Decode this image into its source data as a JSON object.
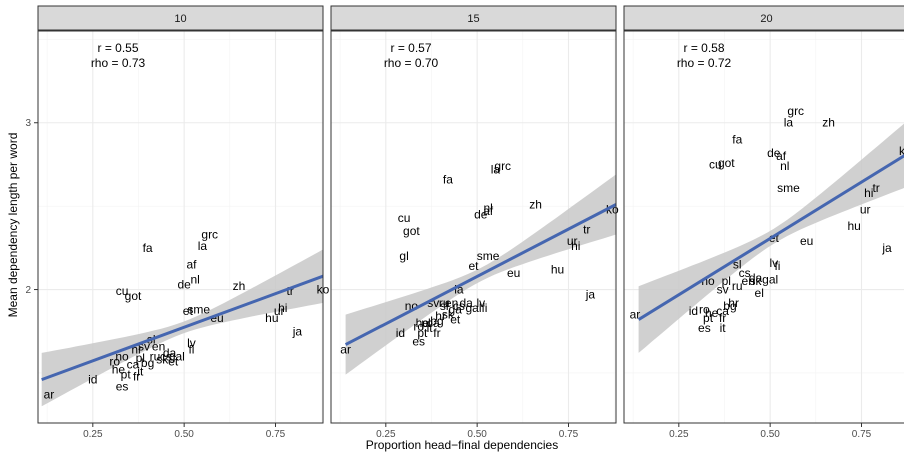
{
  "chart_data": {
    "type": "scatter",
    "xlabel": "Proportion head−final dependencies",
    "ylabel": "Mean dependency length per word",
    "xlim": [
      0.1,
      0.88
    ],
    "ylim": [
      1.2,
      3.55
    ],
    "x_ticks": [
      0.25,
      0.5,
      0.75
    ],
    "x_tick_labels": [
      "0.25",
      "0.50",
      "0.75"
    ],
    "y_ticks": [
      2,
      3
    ],
    "y_tick_labels": [
      "2",
      "3"
    ],
    "grid": true,
    "colors": {
      "fit_line": "#4566b0",
      "confidence_band": "#c8c8c8",
      "strip": "#d9d9d9",
      "panel_border": "#333333",
      "grid": "#ebebeb"
    },
    "panels": [
      {
        "strip": "10",
        "stats": {
          "r": "r =  0.55",
          "rho": "rho =  0.73"
        },
        "fit": {
          "x0": 0.11,
          "y0": 1.46,
          "x1": 0.88,
          "y1": 2.08
        },
        "band_half_width": {
          "at_ends": 0.16,
          "at_center": 0.035
        },
        "points": [
          {
            "label": "ar",
            "x": 0.13,
            "y": 1.37
          },
          {
            "label": "id",
            "x": 0.25,
            "y": 1.46
          },
          {
            "label": "es",
            "x": 0.33,
            "y": 1.42
          },
          {
            "label": "pt",
            "x": 0.34,
            "y": 1.49
          },
          {
            "label": "fr",
            "x": 0.37,
            "y": 1.48
          },
          {
            "label": "it",
            "x": 0.38,
            "y": 1.51
          },
          {
            "label": "he",
            "x": 0.32,
            "y": 1.52
          },
          {
            "label": "ro",
            "x": 0.31,
            "y": 1.57
          },
          {
            "label": "no",
            "x": 0.33,
            "y": 1.6
          },
          {
            "label": "ca",
            "x": 0.36,
            "y": 1.55
          },
          {
            "label": "pl",
            "x": 0.38,
            "y": 1.59
          },
          {
            "label": "bg",
            "x": 0.4,
            "y": 1.56
          },
          {
            "label": "ru",
            "x": 0.42,
            "y": 1.6
          },
          {
            "label": "hr",
            "x": 0.37,
            "y": 1.64
          },
          {
            "label": "cs",
            "x": 0.45,
            "y": 1.6
          },
          {
            "label": "sk",
            "x": 0.44,
            "y": 1.58
          },
          {
            "label": "sv",
            "x": 0.39,
            "y": 1.66
          },
          {
            "label": "en",
            "x": 0.43,
            "y": 1.66
          },
          {
            "label": "da",
            "x": 0.46,
            "y": 1.62
          },
          {
            "label": "gal",
            "x": 0.48,
            "y": 1.6
          },
          {
            "label": "sl",
            "x": 0.41,
            "y": 1.7
          },
          {
            "label": "et",
            "x": 0.47,
            "y": 1.57
          },
          {
            "label": "lv",
            "x": 0.52,
            "y": 1.68
          },
          {
            "label": "fi",
            "x": 0.52,
            "y": 1.64
          },
          {
            "label": "eu",
            "x": 0.59,
            "y": 1.83
          },
          {
            "label": "et",
            "x": 0.51,
            "y": 1.87
          },
          {
            "label": "sme",
            "x": 0.54,
            "y": 1.88
          },
          {
            "label": "hu",
            "x": 0.74,
            "y": 1.83
          },
          {
            "label": "ur",
            "x": 0.76,
            "y": 1.87
          },
          {
            "label": "hi",
            "x": 0.77,
            "y": 1.89
          },
          {
            "label": "ja",
            "x": 0.81,
            "y": 1.75
          },
          {
            "label": "tr",
            "x": 0.79,
            "y": 1.99
          },
          {
            "label": "ko",
            "x": 0.88,
            "y": 2.0
          },
          {
            "label": "zh",
            "x": 0.65,
            "y": 2.02
          },
          {
            "label": "cu",
            "x": 0.33,
            "y": 1.99
          },
          {
            "label": "got",
            "x": 0.36,
            "y": 1.96
          },
          {
            "label": "de",
            "x": 0.5,
            "y": 2.03
          },
          {
            "label": "nl",
            "x": 0.53,
            "y": 2.06
          },
          {
            "label": "af",
            "x": 0.52,
            "y": 2.15
          },
          {
            "label": "fa",
            "x": 0.4,
            "y": 2.25
          },
          {
            "label": "la",
            "x": 0.55,
            "y": 2.26
          },
          {
            "label": "grc",
            "x": 0.57,
            "y": 2.33
          }
        ]
      },
      {
        "strip": "15",
        "stats": {
          "r": "r =  0.57",
          "rho": "rho =  0.70"
        },
        "fit": {
          "x0": 0.14,
          "y0": 1.67,
          "x1": 0.88,
          "y1": 2.51
        },
        "band_half_width": {
          "at_ends": 0.18,
          "at_center": 0.04
        },
        "points": [
          {
            "label": "ar",
            "x": 0.14,
            "y": 1.64
          },
          {
            "label": "id",
            "x": 0.29,
            "y": 1.74
          },
          {
            "label": "es",
            "x": 0.34,
            "y": 1.69
          },
          {
            "label": "pt",
            "x": 0.35,
            "y": 1.74
          },
          {
            "label": "fr",
            "x": 0.39,
            "y": 1.74
          },
          {
            "label": "it",
            "x": 0.37,
            "y": 1.77
          },
          {
            "label": "he",
            "x": 0.35,
            "y": 1.8
          },
          {
            "label": "ro",
            "x": 0.34,
            "y": 1.78
          },
          {
            "label": "ca",
            "x": 0.38,
            "y": 1.8
          },
          {
            "label": "bg",
            "x": 0.39,
            "y": 1.81
          },
          {
            "label": "pl",
            "x": 0.36,
            "y": 1.8
          },
          {
            "label": "hr",
            "x": 0.4,
            "y": 1.84
          },
          {
            "label": "sk",
            "x": 0.42,
            "y": 1.85
          },
          {
            "label": "et",
            "x": 0.44,
            "y": 1.82
          },
          {
            "label": "no",
            "x": 0.32,
            "y": 1.9
          },
          {
            "label": "sv",
            "x": 0.38,
            "y": 1.92
          },
          {
            "label": "ru",
            "x": 0.41,
            "y": 1.92
          },
          {
            "label": "en",
            "x": 0.43,
            "y": 1.92
          },
          {
            "label": "cs",
            "x": 0.45,
            "y": 1.9
          },
          {
            "label": "sl",
            "x": 0.41,
            "y": 1.9
          },
          {
            "label": "ga",
            "x": 0.44,
            "y": 1.88
          },
          {
            "label": "da",
            "x": 0.47,
            "y": 1.92
          },
          {
            "label": "gal",
            "x": 0.49,
            "y": 1.89
          },
          {
            "label": "lv",
            "x": 0.51,
            "y": 1.92
          },
          {
            "label": "fi",
            "x": 0.52,
            "y": 1.89
          },
          {
            "label": "la",
            "x": 0.45,
            "y": 2.0
          },
          {
            "label": "gl",
            "x": 0.3,
            "y": 2.2
          },
          {
            "label": "et",
            "x": 0.49,
            "y": 2.14
          },
          {
            "label": "sme",
            "x": 0.53,
            "y": 2.2
          },
          {
            "label": "eu",
            "x": 0.6,
            "y": 2.1
          },
          {
            "label": "hu",
            "x": 0.72,
            "y": 2.12
          },
          {
            "label": "ur",
            "x": 0.76,
            "y": 2.29
          },
          {
            "label": "hi",
            "x": 0.77,
            "y": 2.26
          },
          {
            "label": "tr",
            "x": 0.8,
            "y": 2.36
          },
          {
            "label": "ko",
            "x": 0.87,
            "y": 2.48
          },
          {
            "label": "ja",
            "x": 0.81,
            "y": 1.97
          },
          {
            "label": "zh",
            "x": 0.66,
            "y": 2.51
          },
          {
            "label": "cu",
            "x": 0.3,
            "y": 2.43
          },
          {
            "label": "got",
            "x": 0.32,
            "y": 2.35
          },
          {
            "label": "de",
            "x": 0.51,
            "y": 2.45
          },
          {
            "label": "nl",
            "x": 0.53,
            "y": 2.49
          },
          {
            "label": "af",
            "x": 0.53,
            "y": 2.47
          },
          {
            "label": "fa",
            "x": 0.42,
            "y": 2.66
          },
          {
            "label": "la",
            "x": 0.55,
            "y": 2.72
          },
          {
            "label": "grc",
            "x": 0.57,
            "y": 2.74
          }
        ]
      },
      {
        "strip": "20",
        "stats": {
          "r": "r =  0.58",
          "rho": "rho =  0.72"
        },
        "fit": {
          "x0": 0.14,
          "y0": 1.82,
          "x1": 0.88,
          "y1": 2.82
        },
        "band_half_width": {
          "at_ends": 0.2,
          "at_center": 0.045
        },
        "points": [
          {
            "label": "ar",
            "x": 0.13,
            "y": 1.85
          },
          {
            "label": "id",
            "x": 0.29,
            "y": 1.87
          },
          {
            "label": "es",
            "x": 0.32,
            "y": 1.77
          },
          {
            "label": "pt",
            "x": 0.33,
            "y": 1.83
          },
          {
            "label": "fr",
            "x": 0.37,
            "y": 1.83
          },
          {
            "label": "it",
            "x": 0.37,
            "y": 1.77
          },
          {
            "label": "he",
            "x": 0.34,
            "y": 1.86
          },
          {
            "label": "ro",
            "x": 0.32,
            "y": 1.88
          },
          {
            "label": "ca",
            "x": 0.37,
            "y": 1.87
          },
          {
            "label": "bg",
            "x": 0.39,
            "y": 1.9
          },
          {
            "label": "hr",
            "x": 0.4,
            "y": 1.92
          },
          {
            "label": "no",
            "x": 0.33,
            "y": 2.05
          },
          {
            "label": "sv",
            "x": 0.37,
            "y": 2.0
          },
          {
            "label": "pl",
            "x": 0.38,
            "y": 2.05
          },
          {
            "label": "ru",
            "x": 0.41,
            "y": 2.02
          },
          {
            "label": "cs",
            "x": 0.43,
            "y": 2.1
          },
          {
            "label": "en",
            "x": 0.44,
            "y": 2.05
          },
          {
            "label": "sk",
            "x": 0.46,
            "y": 2.05
          },
          {
            "label": "da",
            "x": 0.46,
            "y": 2.07
          },
          {
            "label": "gal",
            "x": 0.5,
            "y": 2.06
          },
          {
            "label": "el",
            "x": 0.47,
            "y": 1.98
          },
          {
            "label": "sl",
            "x": 0.41,
            "y": 2.15
          },
          {
            "label": "lv",
            "x": 0.51,
            "y": 2.16
          },
          {
            "label": "fi",
            "x": 0.52,
            "y": 2.14
          },
          {
            "label": "et",
            "x": 0.51,
            "y": 2.31
          },
          {
            "label": "eu",
            "x": 0.6,
            "y": 2.29
          },
          {
            "label": "hu",
            "x": 0.73,
            "y": 2.38
          },
          {
            "label": "ur",
            "x": 0.76,
            "y": 2.48
          },
          {
            "label": "hi",
            "x": 0.77,
            "y": 2.58
          },
          {
            "label": "tr",
            "x": 0.79,
            "y": 2.61
          },
          {
            "label": "ja",
            "x": 0.82,
            "y": 2.25
          },
          {
            "label": "ko",
            "x": 0.87,
            "y": 2.83
          },
          {
            "label": "zh",
            "x": 0.66,
            "y": 3.0
          },
          {
            "label": "sme",
            "x": 0.55,
            "y": 2.61
          },
          {
            "label": "de",
            "x": 0.51,
            "y": 2.82
          },
          {
            "label": "nl",
            "x": 0.54,
            "y": 2.74
          },
          {
            "label": "af",
            "x": 0.53,
            "y": 2.8
          },
          {
            "label": "cu",
            "x": 0.35,
            "y": 2.75
          },
          {
            "label": "got",
            "x": 0.38,
            "y": 2.76
          },
          {
            "label": "fa",
            "x": 0.41,
            "y": 2.9
          },
          {
            "label": "la",
            "x": 0.55,
            "y": 3.0
          },
          {
            "label": "grc",
            "x": 0.57,
            "y": 3.07
          }
        ]
      }
    ]
  }
}
